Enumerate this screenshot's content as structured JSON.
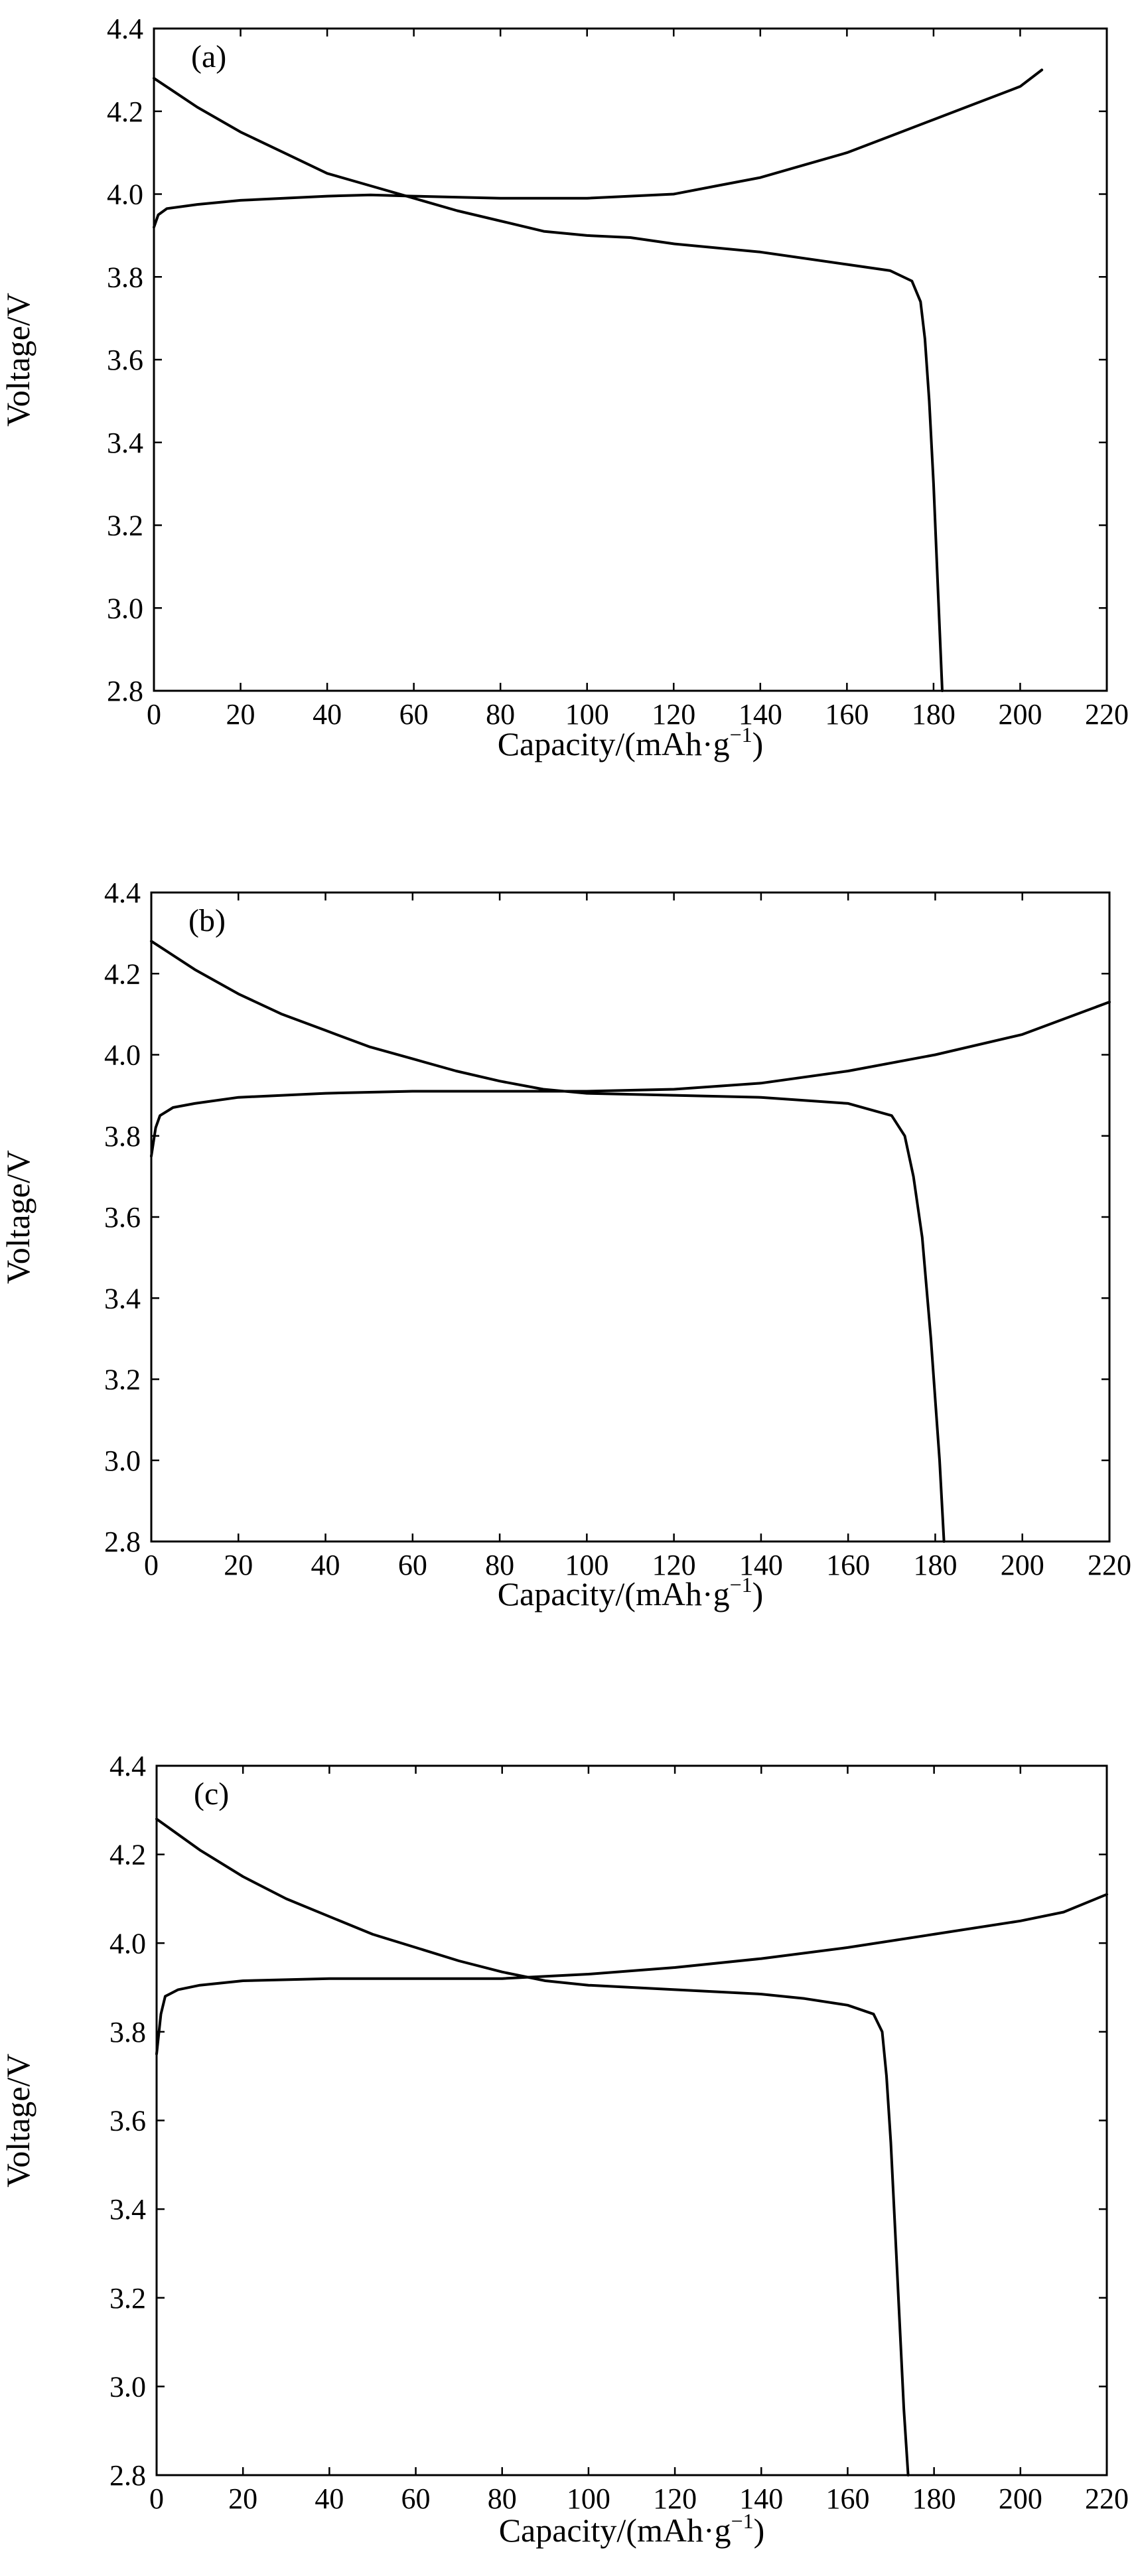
{
  "chart_data": [
    {
      "type": "line",
      "panel_label": "(a)",
      "xlabel": "Capacity/(mAh·g",
      "xlabel_sup": "−1",
      "xlabel_close": ")",
      "ylabel": "Voltage/V",
      "xlim": [
        0,
        220
      ],
      "ylim": [
        2.8,
        4.4
      ],
      "xticks": [
        0,
        20,
        40,
        60,
        80,
        100,
        120,
        140,
        160,
        180,
        200,
        220
      ],
      "yticks": [
        "2.8",
        "3.0",
        "3.2",
        "3.4",
        "3.6",
        "3.8",
        "4.0",
        "4.2",
        "4.4"
      ],
      "series": [
        {
          "points": [
            [
              0,
              3.92
            ],
            [
              1,
              3.95
            ],
            [
              3,
              3.965
            ],
            [
              10,
              3.975
            ],
            [
              20,
              3.985
            ],
            [
              30,
              3.99
            ],
            [
              40,
              3.995
            ],
            [
              50,
              3.998
            ],
            [
              60,
              3.995
            ],
            [
              80,
              3.99
            ],
            [
              100,
              3.99
            ],
            [
              120,
              4.0
            ],
            [
              130,
              4.02
            ],
            [
              140,
              4.04
            ],
            [
              150,
              4.07
            ],
            [
              160,
              4.1
            ],
            [
              170,
              4.14
            ],
            [
              180,
              4.18
            ],
            [
              190,
              4.22
            ],
            [
              200,
              4.26
            ],
            [
              205,
              4.3
            ]
          ]
        },
        {
          "points": [
            [
              0,
              4.28
            ],
            [
              10,
              4.21
            ],
            [
              20,
              4.15
            ],
            [
              30,
              4.1
            ],
            [
              40,
              4.05
            ],
            [
              50,
              4.02
            ],
            [
              60,
              3.99
            ],
            [
              70,
              3.96
            ],
            [
              80,
              3.935
            ],
            [
              90,
              3.91
            ],
            [
              100,
              3.9
            ],
            [
              110,
              3.895
            ],
            [
              120,
              3.88
            ],
            [
              140,
              3.86
            ],
            [
              160,
              3.83
            ],
            [
              170,
              3.815
            ],
            [
              175,
              3.79
            ],
            [
              177,
              3.74
            ],
            [
              178,
              3.65
            ],
            [
              179,
              3.5
            ],
            [
              180,
              3.3
            ],
            [
              181,
              3.05
            ],
            [
              182,
              2.8
            ]
          ]
        }
      ]
    },
    {
      "type": "line",
      "panel_label": "(b)",
      "xlabel": "Capacity/(mAh·g",
      "xlabel_sup": "−1",
      "xlabel_close": ")",
      "ylabel": "Voltage/V",
      "xlim": [
        0,
        220
      ],
      "ylim": [
        2.8,
        4.4
      ],
      "xticks": [
        0,
        20,
        40,
        60,
        80,
        100,
        120,
        140,
        160,
        180,
        200,
        220
      ],
      "yticks": [
        "2.8",
        "3.0",
        "3.2",
        "3.4",
        "3.6",
        "3.8",
        "4.0",
        "4.2",
        "4.4"
      ],
      "series": [
        {
          "points": [
            [
              0,
              3.75
            ],
            [
              1,
              3.82
            ],
            [
              2,
              3.85
            ],
            [
              5,
              3.87
            ],
            [
              10,
              3.88
            ],
            [
              20,
              3.895
            ],
            [
              40,
              3.905
            ],
            [
              60,
              3.91
            ],
            [
              80,
              3.91
            ],
            [
              100,
              3.91
            ],
            [
              120,
              3.915
            ],
            [
              140,
              3.93
            ],
            [
              160,
              3.96
            ],
            [
              180,
              4.0
            ],
            [
              200,
              4.05
            ],
            [
              220,
              4.13
            ]
          ]
        },
        {
          "points": [
            [
              0,
              4.28
            ],
            [
              10,
              4.21
            ],
            [
              20,
              4.15
            ],
            [
              30,
              4.1
            ],
            [
              40,
              4.06
            ],
            [
              50,
              4.02
            ],
            [
              60,
              3.99
            ],
            [
              70,
              3.96
            ],
            [
              80,
              3.935
            ],
            [
              90,
              3.915
            ],
            [
              100,
              3.905
            ],
            [
              120,
              3.9
            ],
            [
              140,
              3.895
            ],
            [
              160,
              3.88
            ],
            [
              170,
              3.85
            ],
            [
              173,
              3.8
            ],
            [
              175,
              3.7
            ],
            [
              177,
              3.55
            ],
            [
              179,
              3.3
            ],
            [
              181,
              3.0
            ],
            [
              182,
              2.8
            ]
          ]
        }
      ]
    },
    {
      "type": "line",
      "panel_label": "(c)",
      "xlabel": "Capacity/(mAh·g",
      "xlabel_sup": "−1",
      "xlabel_close": ")",
      "ylabel": "Voltage/V",
      "xlim": [
        0,
        220
      ],
      "ylim": [
        2.8,
        4.4
      ],
      "xticks": [
        0,
        20,
        40,
        60,
        80,
        100,
        120,
        140,
        160,
        180,
        200,
        220
      ],
      "yticks": [
        "2.8",
        "3.0",
        "3.2",
        "3.4",
        "3.6",
        "3.8",
        "4.0",
        "4.2",
        "4.4"
      ],
      "series": [
        {
          "points": [
            [
              0,
              3.75
            ],
            [
              1,
              3.84
            ],
            [
              2,
              3.88
            ],
            [
              5,
              3.895
            ],
            [
              10,
              3.905
            ],
            [
              20,
              3.915
            ],
            [
              40,
              3.92
            ],
            [
              60,
              3.92
            ],
            [
              80,
              3.92
            ],
            [
              100,
              3.93
            ],
            [
              120,
              3.945
            ],
            [
              140,
              3.965
            ],
            [
              160,
              3.99
            ],
            [
              180,
              4.02
            ],
            [
              200,
              4.05
            ],
            [
              210,
              4.07
            ],
            [
              220,
              4.11
            ]
          ]
        },
        {
          "points": [
            [
              0,
              4.28
            ],
            [
              10,
              4.21
            ],
            [
              20,
              4.15
            ],
            [
              30,
              4.1
            ],
            [
              40,
              4.06
            ],
            [
              50,
              4.02
            ],
            [
              60,
              3.99
            ],
            [
              70,
              3.96
            ],
            [
              80,
              3.935
            ],
            [
              90,
              3.915
            ],
            [
              100,
              3.905
            ],
            [
              120,
              3.895
            ],
            [
              140,
              3.885
            ],
            [
              150,
              3.875
            ],
            [
              160,
              3.86
            ],
            [
              166,
              3.84
            ],
            [
              168,
              3.8
            ],
            [
              169,
              3.7
            ],
            [
              170,
              3.55
            ],
            [
              171,
              3.35
            ],
            [
              172,
              3.15
            ],
            [
              173,
              2.95
            ],
            [
              174,
              2.8
            ]
          ]
        }
      ]
    }
  ]
}
